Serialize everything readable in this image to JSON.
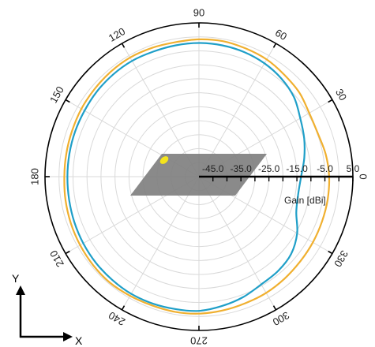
{
  "chart_data": {
    "type": "polar-line",
    "angle_unit": "deg",
    "angle_ticks": [
      0,
      30,
      60,
      90,
      120,
      150,
      180,
      210,
      240,
      270,
      300,
      330
    ],
    "angle_tick_labels": [
      "0",
      "30",
      "60",
      "90",
      "120",
      "150",
      "180",
      "210",
      "240",
      "270",
      "300",
      "330"
    ],
    "radial_label": "Gain [dBi]",
    "radial_ticks": [
      -45,
      -35,
      -25,
      -15,
      -5,
      5
    ],
    "radial_tick_labels": [
      "-45.0",
      "-35.0",
      "-25.0",
      "-15.0",
      "-5.0",
      "5.0"
    ],
    "rlim": [
      -50,
      5
    ],
    "grid": true,
    "series": [
      {
        "color": "#f0b030",
        "angles": [
          0,
          10,
          20,
          30,
          40,
          50,
          60,
          70,
          80,
          90,
          100,
          110,
          120,
          130,
          140,
          150,
          160,
          170,
          180,
          190,
          200,
          210,
          220,
          230,
          240,
          250,
          260,
          270,
          280,
          290,
          300,
          310,
          320,
          330,
          340,
          350
        ],
        "values": [
          -3.5,
          -4,
          -4.8,
          -4.5,
          -3.2,
          -2.5,
          -1.6,
          -1.2,
          -0.8,
          -0.9,
          -1.2,
          -1.0,
          -0.8,
          -1.0,
          -1.3,
          -1.5,
          -1.8,
          -1.9,
          -1.9,
          -1.6,
          -1.3,
          -1.0,
          -0.7,
          -0.5,
          -0.8,
          -1.0,
          -0.9,
          -1.0,
          -1.4,
          -1.8,
          -2.0,
          -2.4,
          -2.8,
          -3.0,
          -3.2,
          -3.3
        ]
      },
      {
        "color": "#1f9fc8",
        "angles": [
          0,
          10,
          20,
          30,
          40,
          50,
          60,
          70,
          80,
          90,
          100,
          110,
          120,
          130,
          140,
          150,
          160,
          170,
          180,
          190,
          200,
          210,
          220,
          230,
          240,
          250,
          260,
          270,
          280,
          290,
          300,
          310,
          320,
          330,
          340,
          350
        ],
        "values": [
          -13.5,
          -11.8,
          -10.0,
          -8.2,
          -5.7,
          -4.2,
          -3.2,
          -2.6,
          -2.3,
          -2.2,
          -2.3,
          -2.4,
          -2.2,
          -2.3,
          -2.5,
          -2.8,
          -2.9,
          -3.0,
          -3.0,
          -2.9,
          -2.6,
          -2.3,
          -2.0,
          -1.8,
          -1.6,
          -1.7,
          -1.9,
          -2.0,
          -3.0,
          -4.1,
          -5.5,
          -6.0,
          -7.0,
          -9.5,
          -13.0,
          -14.0
        ]
      }
    ]
  },
  "axes_indicator": {
    "x_label": "X",
    "y_label": "Y"
  }
}
